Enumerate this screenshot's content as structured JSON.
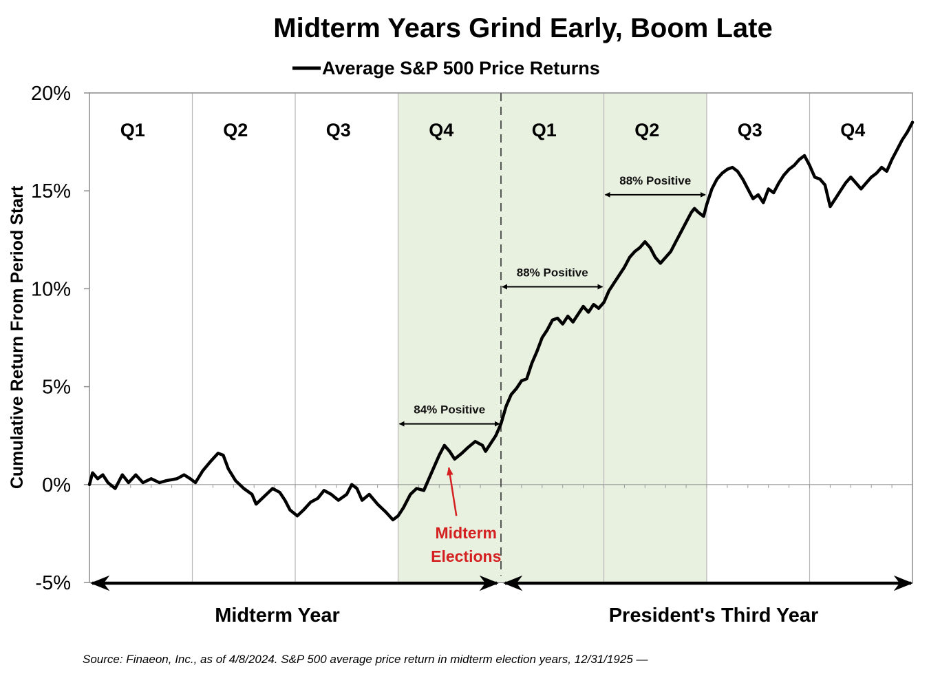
{
  "chart_data": {
    "type": "line",
    "title": "Midterm Years Grind Early, Boom Late",
    "legend": [
      {
        "label": "Average S&P 500 Price Returns",
        "color": "#000000"
      }
    ],
    "ylabel": "Cumulative Return From Period Start",
    "ylim": [
      -5,
      20
    ],
    "yticks": [
      20,
      15,
      10,
      5,
      0,
      -5
    ],
    "ytick_labels": [
      "20%",
      "15%",
      "10%",
      "5%",
      "0%",
      "-5%"
    ],
    "quarters": [
      "Q1",
      "Q2",
      "Q3",
      "Q4",
      "Q1",
      "Q2",
      "Q3",
      "Q4"
    ],
    "x_unit": "quarters elapsed (0 = start of midterm year, 8 = end of third year)",
    "xlim": [
      0,
      8
    ],
    "shaded_quarters": [
      3,
      4,
      5
    ],
    "election_divider_x": 4,
    "series": [
      {
        "name": "Average S&P 500 Price Returns",
        "color": "#000000",
        "points": [
          [
            0.0,
            0.0
          ],
          [
            0.03,
            0.6
          ],
          [
            0.08,
            0.3
          ],
          [
            0.13,
            0.5
          ],
          [
            0.18,
            0.1
          ],
          [
            0.25,
            -0.2
          ],
          [
            0.32,
            0.5
          ],
          [
            0.38,
            0.1
          ],
          [
            0.45,
            0.5
          ],
          [
            0.52,
            0.1
          ],
          [
            0.6,
            0.3
          ],
          [
            0.68,
            0.1
          ],
          [
            0.75,
            0.2
          ],
          [
            0.85,
            0.3
          ],
          [
            0.92,
            0.5
          ],
          [
            0.98,
            0.3
          ],
          [
            1.03,
            0.1
          ],
          [
            1.1,
            0.7
          ],
          [
            1.18,
            1.2
          ],
          [
            1.25,
            1.6
          ],
          [
            1.3,
            1.5
          ],
          [
            1.35,
            0.8
          ],
          [
            1.42,
            0.2
          ],
          [
            1.5,
            -0.2
          ],
          [
            1.58,
            -0.5
          ],
          [
            1.62,
            -1.0
          ],
          [
            1.7,
            -0.6
          ],
          [
            1.78,
            -0.2
          ],
          [
            1.85,
            -0.4
          ],
          [
            1.9,
            -0.8
          ],
          [
            1.95,
            -1.3
          ],
          [
            2.02,
            -1.6
          ],
          [
            2.08,
            -1.3
          ],
          [
            2.15,
            -0.9
          ],
          [
            2.22,
            -0.7
          ],
          [
            2.28,
            -0.3
          ],
          [
            2.35,
            -0.5
          ],
          [
            2.42,
            -0.8
          ],
          [
            2.5,
            -0.5
          ],
          [
            2.55,
            0.0
          ],
          [
            2.6,
            -0.2
          ],
          [
            2.65,
            -0.8
          ],
          [
            2.72,
            -0.5
          ],
          [
            2.8,
            -1.0
          ],
          [
            2.88,
            -1.4
          ],
          [
            2.95,
            -1.8
          ],
          [
            3.0,
            -1.6
          ],
          [
            3.05,
            -1.2
          ],
          [
            3.12,
            -0.5
          ],
          [
            3.18,
            -0.2
          ],
          [
            3.25,
            -0.3
          ],
          [
            3.3,
            0.3
          ],
          [
            3.35,
            0.9
          ],
          [
            3.4,
            1.5
          ],
          [
            3.45,
            2.0
          ],
          [
            3.5,
            1.7
          ],
          [
            3.55,
            1.3
          ],
          [
            3.62,
            1.6
          ],
          [
            3.68,
            1.9
          ],
          [
            3.75,
            2.2
          ],
          [
            3.82,
            2.0
          ],
          [
            3.85,
            1.7
          ],
          [
            3.9,
            2.1
          ],
          [
            3.95,
            2.5
          ],
          [
            4.0,
            3.1
          ],
          [
            4.05,
            4.0
          ],
          [
            4.1,
            4.6
          ],
          [
            4.15,
            4.9
          ],
          [
            4.2,
            5.3
          ],
          [
            4.25,
            5.4
          ],
          [
            4.3,
            6.2
          ],
          [
            4.35,
            6.8
          ],
          [
            4.4,
            7.5
          ],
          [
            4.45,
            7.9
          ],
          [
            4.5,
            8.4
          ],
          [
            4.55,
            8.5
          ],
          [
            4.6,
            8.2
          ],
          [
            4.65,
            8.6
          ],
          [
            4.7,
            8.3
          ],
          [
            4.75,
            8.7
          ],
          [
            4.8,
            9.1
          ],
          [
            4.85,
            8.8
          ],
          [
            4.9,
            9.2
          ],
          [
            4.95,
            9.0
          ],
          [
            5.0,
            9.3
          ],
          [
            5.05,
            9.9
          ],
          [
            5.1,
            10.3
          ],
          [
            5.15,
            10.7
          ],
          [
            5.2,
            11.1
          ],
          [
            5.25,
            11.6
          ],
          [
            5.3,
            11.9
          ],
          [
            5.35,
            12.1
          ],
          [
            5.4,
            12.4
          ],
          [
            5.45,
            12.1
          ],
          [
            5.5,
            11.6
          ],
          [
            5.55,
            11.3
          ],
          [
            5.6,
            11.6
          ],
          [
            5.65,
            11.9
          ],
          [
            5.7,
            12.4
          ],
          [
            5.75,
            12.9
          ],
          [
            5.8,
            13.4
          ],
          [
            5.85,
            13.9
          ],
          [
            5.88,
            14.1
          ],
          [
            5.92,
            13.9
          ],
          [
            5.97,
            13.7
          ],
          [
            6.0,
            14.3
          ],
          [
            6.05,
            15.1
          ],
          [
            6.1,
            15.6
          ],
          [
            6.15,
            15.9
          ],
          [
            6.2,
            16.1
          ],
          [
            6.25,
            16.2
          ],
          [
            6.3,
            16.0
          ],
          [
            6.35,
            15.6
          ],
          [
            6.4,
            15.1
          ],
          [
            6.45,
            14.6
          ],
          [
            6.5,
            14.8
          ],
          [
            6.55,
            14.4
          ],
          [
            6.6,
            15.1
          ],
          [
            6.65,
            14.9
          ],
          [
            6.7,
            15.4
          ],
          [
            6.75,
            15.8
          ],
          [
            6.8,
            16.1
          ],
          [
            6.85,
            16.3
          ],
          [
            6.9,
            16.6
          ],
          [
            6.95,
            16.8
          ],
          [
            7.0,
            16.3
          ],
          [
            7.05,
            15.7
          ],
          [
            7.1,
            15.6
          ],
          [
            7.15,
            15.3
          ],
          [
            7.2,
            14.2
          ],
          [
            7.25,
            14.6
          ],
          [
            7.3,
            15.0
          ],
          [
            7.35,
            15.4
          ],
          [
            7.4,
            15.7
          ],
          [
            7.45,
            15.4
          ],
          [
            7.5,
            15.1
          ],
          [
            7.55,
            15.4
          ],
          [
            7.6,
            15.7
          ],
          [
            7.65,
            15.9
          ],
          [
            7.7,
            16.2
          ],
          [
            7.75,
            16.0
          ],
          [
            7.8,
            16.6
          ],
          [
            7.85,
            17.1
          ],
          [
            7.9,
            17.6
          ],
          [
            7.95,
            18.0
          ],
          [
            8.0,
            18.5
          ]
        ]
      }
    ],
    "annotations": [
      {
        "text": "84% Positive",
        "x_start": 3,
        "x_end": 4,
        "y": 3.1
      },
      {
        "text": "88% Positive",
        "x_start": 4,
        "x_end": 5,
        "y": 10.1
      },
      {
        "text": "88% Positive",
        "x_start": 5,
        "x_end": 6,
        "y": 14.8
      }
    ],
    "midterm_elections": {
      "line1": "Midterm",
      "line2": "Elections",
      "x": 3.5,
      "y": 1.0,
      "color": "#d42020"
    },
    "periods": [
      {
        "label": "Midterm Year",
        "x_start": 0,
        "x_end": 4
      },
      {
        "label": "President's Third Year",
        "x_start": 4,
        "x_end": 8
      }
    ],
    "source": "Source: Finaeon, Inc., as of 4/8/2024. S&P 500 average price return in midterm election years, 12/31/1925 —",
    "colors": {
      "shade": "#e8f0e0",
      "line": "#000000",
      "grid": "#b8b8b8",
      "arrow": "#000000",
      "elections": "#d42020"
    }
  }
}
